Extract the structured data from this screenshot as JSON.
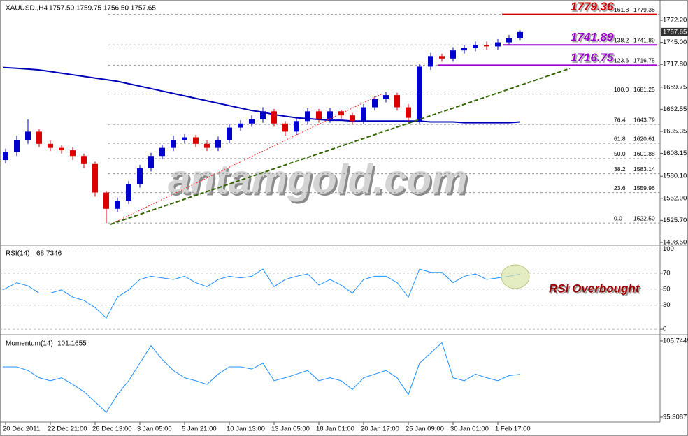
{
  "chart_data": [
    {
      "type": "candlestick",
      "title": "XAUUSD.,H4",
      "subtitle": "1757.50 1759.75 1756.50 1757.65",
      "watermark": "antamgold.com",
      "categories": [
        "20 Dec 2011",
        null,
        null,
        null,
        "22 Dec 21:00",
        null,
        null,
        null,
        "28 Dec 13:00",
        null,
        null,
        null,
        "3 Jan 05:00",
        null,
        null,
        null,
        "5 Jan 21:00",
        null,
        null,
        null,
        "10 Jan 13:00",
        null,
        null,
        null,
        "13 Jan 05:00",
        null,
        null,
        null,
        "18 Jan 01:00",
        null,
        null,
        null,
        "20 Jan 17:00",
        null,
        null,
        null,
        "25 Jan 09:00",
        null,
        null,
        null,
        "30 Jan 01:00",
        null,
        null,
        null,
        "1 Feb 17:00",
        null,
        null
      ],
      "open": [
        1600,
        1610,
        1625,
        1635,
        1620,
        1615,
        1612,
        1605,
        1595,
        1560,
        1540,
        1550,
        1570,
        1590,
        1605,
        1615,
        1625,
        1628,
        1620,
        1615,
        1625,
        1640,
        1645,
        1650,
        1660,
        1645,
        1635,
        1648,
        1660,
        1650,
        1660,
        1655,
        1648,
        1665,
        1675,
        1680,
        1665,
        1648,
        1715,
        1728,
        1725,
        1735,
        1738,
        1742,
        1740,
        1745,
        1750
      ],
      "high": [
        1614,
        1630,
        1650,
        1638,
        1624,
        1618,
        1616,
        1608,
        1598,
        1562,
        1554,
        1574,
        1594,
        1609,
        1619,
        1630,
        1632,
        1631,
        1624,
        1629,
        1644,
        1649,
        1655,
        1665,
        1663,
        1648,
        1652,
        1664,
        1663,
        1664,
        1662,
        1658,
        1669,
        1679,
        1684,
        1683,
        1669,
        1718,
        1732,
        1731,
        1739,
        1742,
        1746,
        1746,
        1749,
        1754,
        1759.75
      ],
      "low": [
        1596,
        1605,
        1620,
        1616,
        1611,
        1608,
        1600,
        1590,
        1555,
        1522.5,
        1536,
        1546,
        1566,
        1586,
        1601,
        1611,
        1621,
        1616,
        1611,
        1611,
        1621,
        1636,
        1641,
        1646,
        1641,
        1630,
        1631,
        1644,
        1646,
        1646,
        1651,
        1644,
        1644,
        1661,
        1671,
        1661,
        1648,
        1645,
        1711,
        1721,
        1721,
        1731,
        1734,
        1736,
        1736,
        1741,
        1748
      ],
      "close": [
        1610,
        1625,
        1635,
        1620,
        1615,
        1612,
        1605,
        1595,
        1560,
        1540,
        1550,
        1570,
        1590,
        1605,
        1615,
        1625,
        1628,
        1620,
        1615,
        1625,
        1640,
        1645,
        1650,
        1660,
        1645,
        1635,
        1648,
        1660,
        1650,
        1660,
        1655,
        1648,
        1665,
        1675,
        1680,
        1665,
        1652,
        1715,
        1728,
        1725,
        1735,
        1738,
        1742,
        1740,
        1745,
        1750,
        1757.65
      ],
      "up_color": "#0000cc",
      "down_color": "#dd0000",
      "ma": {
        "color": "#0000bb",
        "values": [
          1714,
          1713,
          1712,
          1711,
          1709,
          1707,
          1705,
          1703,
          1701,
          1699,
          1697,
          1694,
          1691,
          1688,
          1685,
          1682,
          1679,
          1676,
          1673,
          1670,
          1667,
          1664,
          1661,
          1659,
          1656,
          1654,
          1652,
          1651,
          1650,
          1649,
          1649,
          1648,
          1648,
          1648,
          1648,
          1648,
          1648,
          1648,
          1647,
          1647,
          1647,
          1646,
          1646,
          1646,
          1646,
          1646,
          1647
        ]
      },
      "ylim": [
        1495.9,
        1793.7
      ],
      "yticks": [
        {
          "value": 1498.5,
          "label": "1498.50"
        },
        {
          "value": 1525.7,
          "label": "1525.70"
        },
        {
          "value": 1552.9,
          "label": "1552.90"
        },
        {
          "value": 1580.1,
          "label": "1580.10"
        },
        1608.15,
        1635.35,
        1662.55,
        1689.75,
        {
          "value": 1717.8,
          "label": "1717.80"
        },
        {
          "value": 1745,
          "label": "1745.00"
        },
        {
          "value": 1772.2,
          "label": "1772.20"
        }
      ],
      "last_price": 1757.65,
      "fib": [
        {
          "level": "0.0",
          "price": {
            "value": 1522.5,
            "label": "1522.50"
          }
        },
        {
          "level": "23.6",
          "price": 1559.96
        },
        {
          "level": "38.2",
          "price": 1583.14
        },
        {
          "level": "50.0",
          "price": 1601.88
        },
        {
          "level": "61.8",
          "price": 1620.61
        },
        {
          "level": "76.4",
          "price": 1643.79
        },
        {
          "level": "100.0",
          "price": 1681.25
        },
        {
          "level": "123.6",
          "price": 1716.75
        },
        {
          "level": "138.2",
          "price": 1741.89
        },
        {
          "level": "161.8",
          "price": 1779.36
        }
      ],
      "annotations": [
        {
          "value": 1779.36,
          "color": "#cc0000"
        },
        {
          "value": 1741.89,
          "color": "#9900cc"
        },
        {
          "value": 1716.75,
          "color": "#9900cc"
        }
      ]
    },
    {
      "type": "line",
      "title": "RSI(14)",
      "color": "#1e90ff",
      "annotation": "RSI Overbought",
      "values": [
        49,
        58,
        54,
        45,
        45,
        49,
        40,
        36,
        27,
        14,
        40,
        49,
        62,
        66,
        64,
        62,
        66,
        58,
        53,
        62,
        66,
        64,
        66,
        75,
        53,
        62,
        66,
        69,
        55,
        62,
        55,
        45,
        62,
        66,
        66,
        58,
        40,
        75,
        71,
        71,
        58,
        66,
        69,
        62,
        64,
        66,
        68.7346
      ],
      "ylim": [
        -6,
        103
      ],
      "yticks": [
        100,
        70,
        50,
        30,
        0
      ]
    },
    {
      "type": "line",
      "title": "Momentum(14)",
      "color": "#1e90ff",
      "values": [
        102.2,
        102.2,
        101.7,
        100.7,
        100.3,
        100.7,
        99.8,
        98.8,
        97.4,
        95.97,
        98.4,
        100.3,
        102.7,
        105.1,
        103.2,
        101.7,
        100.7,
        100.3,
        99.8,
        101.2,
        102.2,
        102.2,
        101.9,
        102.7,
        100.3,
        100.7,
        101.2,
        101.7,
        100.3,
        100.7,
        100.3,
        99.1,
        100.7,
        101.2,
        101.7,
        100.7,
        98.4,
        102.7,
        104.1,
        105.5,
        100.7,
        100.3,
        101.2,
        100.7,
        100.3,
        101.0,
        101.1655
      ],
      "ylim": [
        94.64,
        106.41
      ],
      "yticks": [
        105.7449,
        95.3087
      ]
    }
  ]
}
